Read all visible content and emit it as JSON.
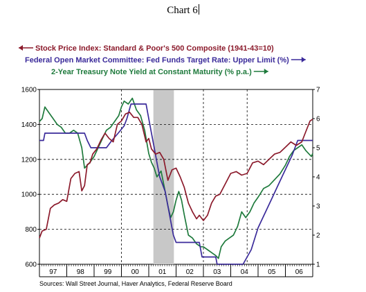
{
  "title": "Chart 6",
  "sources": "Sources:  Wall Street Journal, Haver Analytics, Federal Reserve Board",
  "colors": {
    "sp500": "#8b1a2b",
    "fedfunds": "#3a2a9a",
    "treasury": "#1e7a3c",
    "recession": "#c8c8c8"
  },
  "chart_data": {
    "type": "line",
    "grid": "dashed",
    "legend_placement": "top",
    "x_categories": [
      "97",
      "98",
      "99",
      "00",
      "01",
      "02",
      "03",
      "04",
      "05",
      "06"
    ],
    "x_range": [
      1997.0,
      2007.0
    ],
    "left_axis": {
      "ylim": [
        600,
        1600
      ],
      "ticks": [
        "600",
        "800",
        "1000",
        "1200",
        "1400",
        "1600"
      ]
    },
    "right_axis": {
      "ylim": [
        1,
        7
      ],
      "ticks": [
        "1",
        "2",
        "3",
        "4",
        "5",
        "6",
        "7"
      ]
    },
    "recession": [
      2001.17,
      2001.92
    ],
    "series": [
      {
        "name": "Stock Price Index: Standard & Poor's 500 Composite  (1941-43=10)",
        "axis": "left",
        "legend_position": "left",
        "x": [
          1997.0,
          1997.1,
          1997.25,
          1997.4,
          1997.55,
          1997.7,
          1997.85,
          1998.0,
          1998.15,
          1998.3,
          1998.45,
          1998.55,
          1998.65,
          1998.75,
          1998.85,
          1998.95,
          1999.1,
          1999.25,
          1999.4,
          1999.55,
          1999.7,
          1999.85,
          2000.0,
          2000.15,
          2000.3,
          2000.45,
          2000.6,
          2000.75,
          2000.9,
          2001.0,
          2001.1,
          2001.25,
          2001.4,
          2001.55,
          2001.7,
          2001.85,
          2002.0,
          2002.15,
          2002.3,
          2002.45,
          2002.6,
          2002.75,
          2002.85,
          2003.0,
          2003.15,
          2003.3,
          2003.45,
          2003.6,
          2003.8,
          2004.0,
          2004.2,
          2004.4,
          2004.6,
          2004.8,
          2005.0,
          2005.2,
          2005.4,
          2005.6,
          2005.8,
          2006.0,
          2006.2,
          2006.4,
          2006.6,
          2006.75,
          2006.9,
          2007.0
        ],
        "values": [
          750,
          790,
          800,
          920,
          940,
          950,
          970,
          960,
          1090,
          1120,
          1130,
          1020,
          1050,
          1170,
          1180,
          1230,
          1260,
          1310,
          1350,
          1320,
          1300,
          1400,
          1420,
          1460,
          1470,
          1440,
          1440,
          1400,
          1300,
          1320,
          1260,
          1230,
          1240,
          1200,
          1080,
          1140,
          1150,
          1100,
          1040,
          950,
          900,
          860,
          880,
          850,
          880,
          950,
          990,
          1000,
          1060,
          1120,
          1130,
          1110,
          1120,
          1180,
          1190,
          1170,
          1200,
          1230,
          1240,
          1270,
          1300,
          1280,
          1300,
          1360,
          1420,
          1430
        ]
      },
      {
        "name": "Federal Open Market Committee: Fed Funds Target Rate: Upper Limit (%)",
        "axis": "right",
        "legend_position": "right",
        "x": [
          1997.0,
          1997.15,
          1997.2,
          1998.65,
          1998.75,
          1998.88,
          1999.45,
          1999.65,
          1999.88,
          2000.1,
          2000.2,
          2000.35,
          2000.9,
          2001.0,
          2001.1,
          2001.2,
          2001.3,
          2001.4,
          2001.5,
          2001.6,
          2001.7,
          2001.8,
          2001.9,
          2002.0,
          2002.85,
          2002.95,
          2003.45,
          2003.5,
          2004.45,
          2004.6,
          2004.75,
          2005.0,
          2005.25,
          2005.5,
          2005.75,
          2006.0,
          2006.25,
          2006.45,
          2007.0
        ],
        "values": [
          5.25,
          5.25,
          5.5,
          5.5,
          5.25,
          5.0,
          5.0,
          5.25,
          5.5,
          5.75,
          6.0,
          6.5,
          6.5,
          6.0,
          5.5,
          5.0,
          4.5,
          4.0,
          3.75,
          3.5,
          3.0,
          2.5,
          2.0,
          1.75,
          1.75,
          1.25,
          1.25,
          1.0,
          1.0,
          1.25,
          1.5,
          2.25,
          2.75,
          3.25,
          3.75,
          4.25,
          4.75,
          5.25,
          5.25
        ]
      },
      {
        "name": "2-Year Treasury Note Yield at Constant Maturity (% p.a.)",
        "axis": "right",
        "legend_position": "right",
        "x": [
          1997.0,
          1997.1,
          1997.2,
          1997.35,
          1997.5,
          1997.65,
          1997.8,
          1997.95,
          1998.1,
          1998.25,
          1998.4,
          1998.55,
          1998.65,
          1998.75,
          1998.85,
          1999.0,
          1999.15,
          1999.3,
          1999.45,
          1999.6,
          1999.75,
          1999.9,
          2000.0,
          2000.1,
          2000.25,
          2000.4,
          2000.55,
          2000.7,
          2000.85,
          2001.0,
          2001.1,
          2001.2,
          2001.3,
          2001.45,
          2001.6,
          2001.7,
          2001.8,
          2001.9,
          2002.0,
          2002.1,
          2002.2,
          2002.3,
          2002.45,
          2002.6,
          2002.75,
          2002.9,
          2003.0,
          2003.15,
          2003.3,
          2003.45,
          2003.55,
          2003.65,
          2003.8,
          2003.95,
          2004.1,
          2004.25,
          2004.4,
          2004.55,
          2004.7,
          2004.85,
          2005.0,
          2005.2,
          2005.4,
          2005.6,
          2005.8,
          2006.0,
          2006.15,
          2006.3,
          2006.45,
          2006.6,
          2006.75,
          2006.85,
          2006.95,
          2007.0
        ],
        "values": [
          5.9,
          6.0,
          6.4,
          6.2,
          6.0,
          5.8,
          5.7,
          5.5,
          5.5,
          5.6,
          5.5,
          5.0,
          4.3,
          4.4,
          4.5,
          4.7,
          5.0,
          5.3,
          5.6,
          5.7,
          5.9,
          6.1,
          6.4,
          6.6,
          6.5,
          6.7,
          6.3,
          6.1,
          5.6,
          4.8,
          4.5,
          4.3,
          4.0,
          4.2,
          3.5,
          3.0,
          2.6,
          2.8,
          3.2,
          3.5,
          3.2,
          2.7,
          2.0,
          1.9,
          1.7,
          1.6,
          1.6,
          1.5,
          1.4,
          1.3,
          1.2,
          1.6,
          1.8,
          1.9,
          2.0,
          2.3,
          2.8,
          2.6,
          2.8,
          3.1,
          3.3,
          3.6,
          3.7,
          3.9,
          4.1,
          4.4,
          4.7,
          4.9,
          5.0,
          5.1,
          4.9,
          4.8,
          4.7,
          4.8
        ]
      }
    ]
  }
}
